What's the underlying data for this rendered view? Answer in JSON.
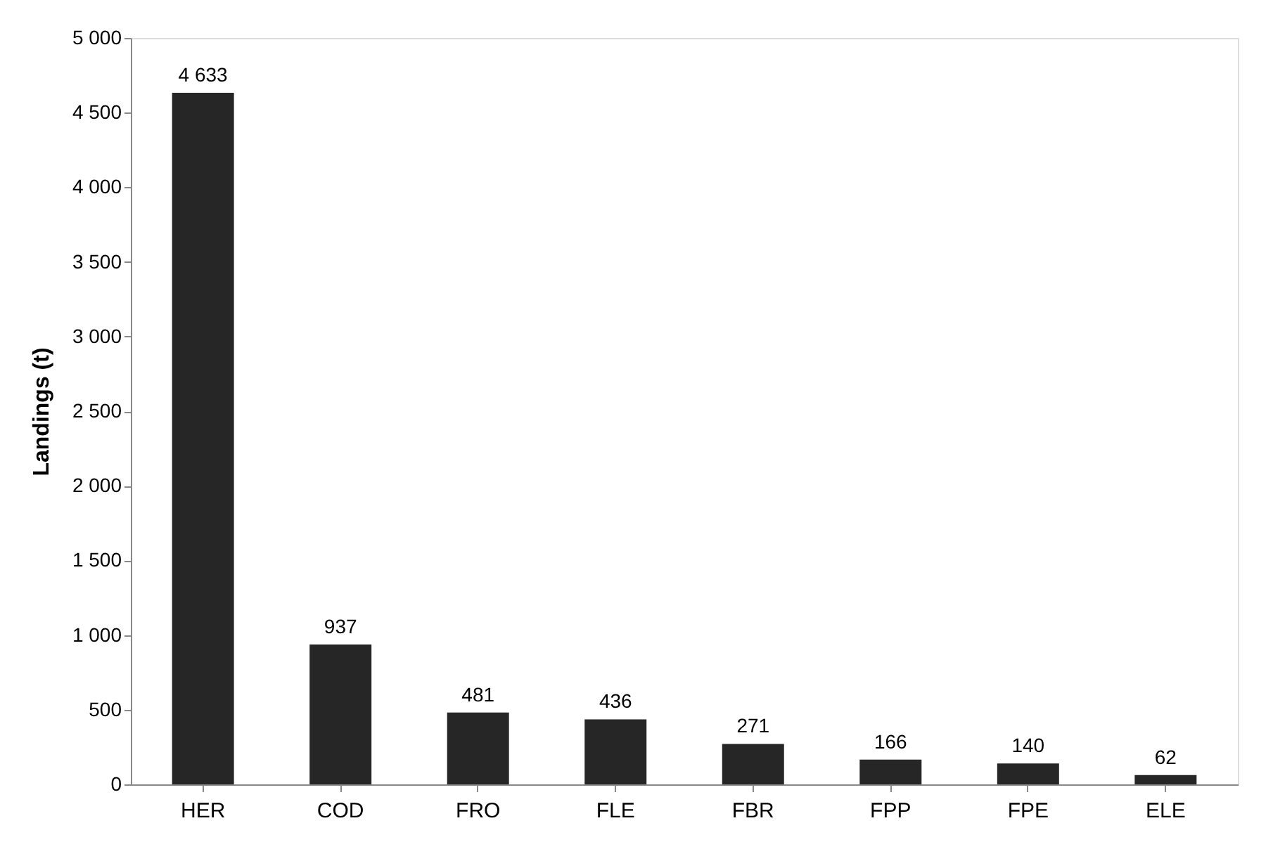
{
  "chart_data": {
    "type": "bar",
    "ylabel": "Landings (t)",
    "categories": [
      "HER",
      "COD",
      "FRO",
      "FLE",
      "FBR",
      "FPP",
      "FPE",
      "ELE"
    ],
    "values": [
      4633,
      937,
      481,
      436,
      271,
      166,
      140,
      62
    ],
    "value_labels": [
      "4 633",
      "937",
      "481",
      "436",
      "271",
      "166",
      "140",
      "62"
    ],
    "color": "#262626",
    "ylim": [
      0,
      5000
    ],
    "yticks": [
      0,
      500,
      {
        "value": 1000,
        "label": "1 000"
      },
      {
        "value": 1500,
        "label": "1 500"
      },
      {
        "value": 2000,
        "label": "2 000"
      },
      {
        "value": 2500,
        "label": "2 500"
      },
      {
        "value": 3000,
        "label": "3 000"
      },
      {
        "value": 3500,
        "label": "3 500"
      },
      {
        "value": 4000,
        "label": "4 000"
      },
      {
        "value": 4500,
        "label": "4 500"
      },
      {
        "value": 5000,
        "label": "5 000"
      }
    ],
    "grid": false
  }
}
